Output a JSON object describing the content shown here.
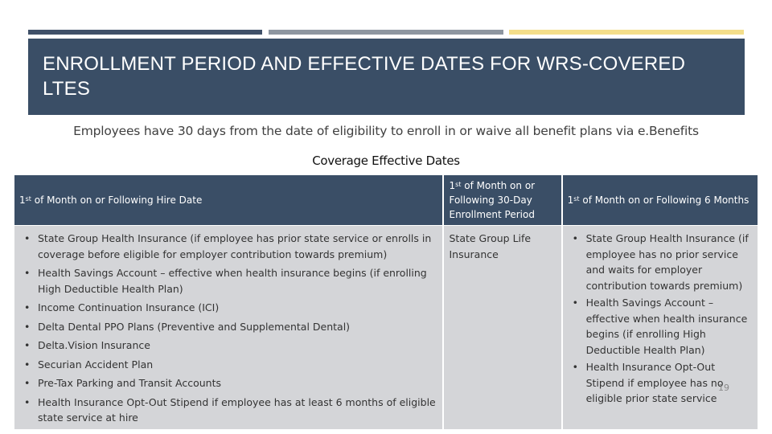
{
  "slide": {
    "title": "ENROLLMENT PERIOD AND EFFECTIVE DATES FOR WRS-COVERED LTES",
    "subtitle": "Employees have 30 days from the date of eligibility to enroll in or waive all benefit plans via e.Benefits",
    "table_caption": "Coverage Effective Dates",
    "page_number": "19",
    "colors": {
      "header_bg": "#3a4e66",
      "cell_bg": "#d4d5d8",
      "accent_gray": "#8d96a0",
      "accent_gold": "#f3de8a"
    }
  },
  "table": {
    "columns": [
      {
        "sup": "st",
        "header_pre": "1",
        "header_post": " of Month on or Following Hire Date"
      },
      {
        "sup": "st",
        "header_pre": "1",
        "header_post": " of Month on or Following 30-Day Enrollment Period"
      },
      {
        "sup": "st",
        "header_pre": "1",
        "header_post": " of Month on or Following 6 Months"
      }
    ],
    "col1_items": [
      "State Group Health Insurance (if employee has prior state service or enrolls in coverage before eligible for employer contribution towards premium)",
      "Health Savings Account – effective when health insurance begins (if enrolling High Deductible Health Plan)",
      "Income Continuation Insurance (ICI)",
      "Delta Dental PPO Plans (Preventive and Supplemental Dental)",
      "Delta.Vision Insurance",
      "Securian Accident Plan",
      "Pre-Tax Parking and Transit Accounts",
      "Health Insurance Opt-Out Stipend if employee has at least 6 months of eligible state service at hire"
    ],
    "col2_text": "State Group Life Insurance",
    "col3_items": [
      "State Group Health Insurance (if employee has no prior service and waits for employer contribution towards premium)",
      "Health Savings Account – effective when health insurance begins (if enrolling High Deductible Health Plan)",
      "Health Insurance Opt-Out Stipend if employee has no eligible prior state service"
    ]
  }
}
